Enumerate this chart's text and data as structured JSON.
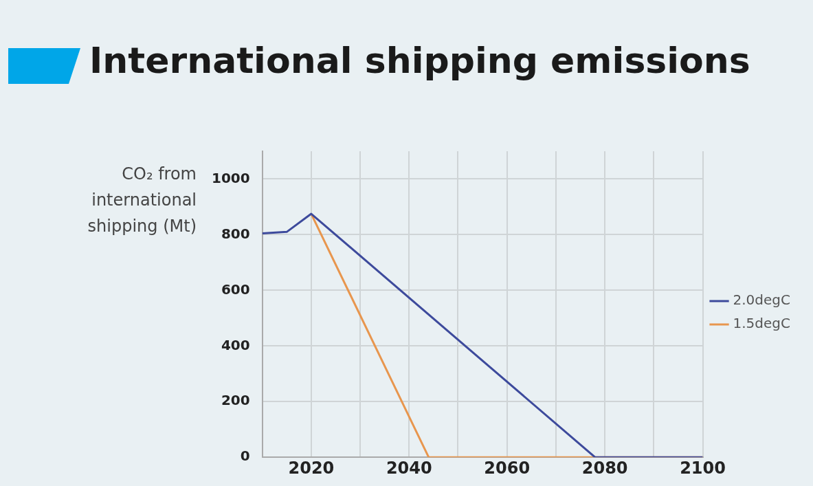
{
  "chart_data": {
    "type": "line",
    "title": "International shipping emissions",
    "ylabel": "CO₂ from international shipping (Mt)",
    "xlim": [
      2010,
      2100
    ],
    "xticks": [
      2020,
      {
        "value": 2030,
        "label": null
      },
      2040,
      {
        "value": 2050,
        "label": null
      },
      2060,
      {
        "value": 2070,
        "label": null
      },
      2080,
      {
        "value": 2090,
        "label": null
      },
      2100
    ],
    "ylim": [
      0,
      1100
    ],
    "yticks": [
      0,
      200,
      400,
      600,
      800,
      1000
    ],
    "grid": true,
    "legend": "right",
    "marker": "none",
    "line_style": "solid",
    "series": [
      {
        "name": "2.0degC",
        "color": "#3d4a9c",
        "x": [
          2010,
          2015,
          2020,
          2078,
          2100
        ],
        "values": [
          805,
          810,
          875,
          0,
          0
        ]
      },
      {
        "name": "1.5degC",
        "color": "#e8964e",
        "x": [
          2020,
          2044,
          2100
        ],
        "values": [
          875,
          0,
          0
        ]
      }
    ]
  }
}
